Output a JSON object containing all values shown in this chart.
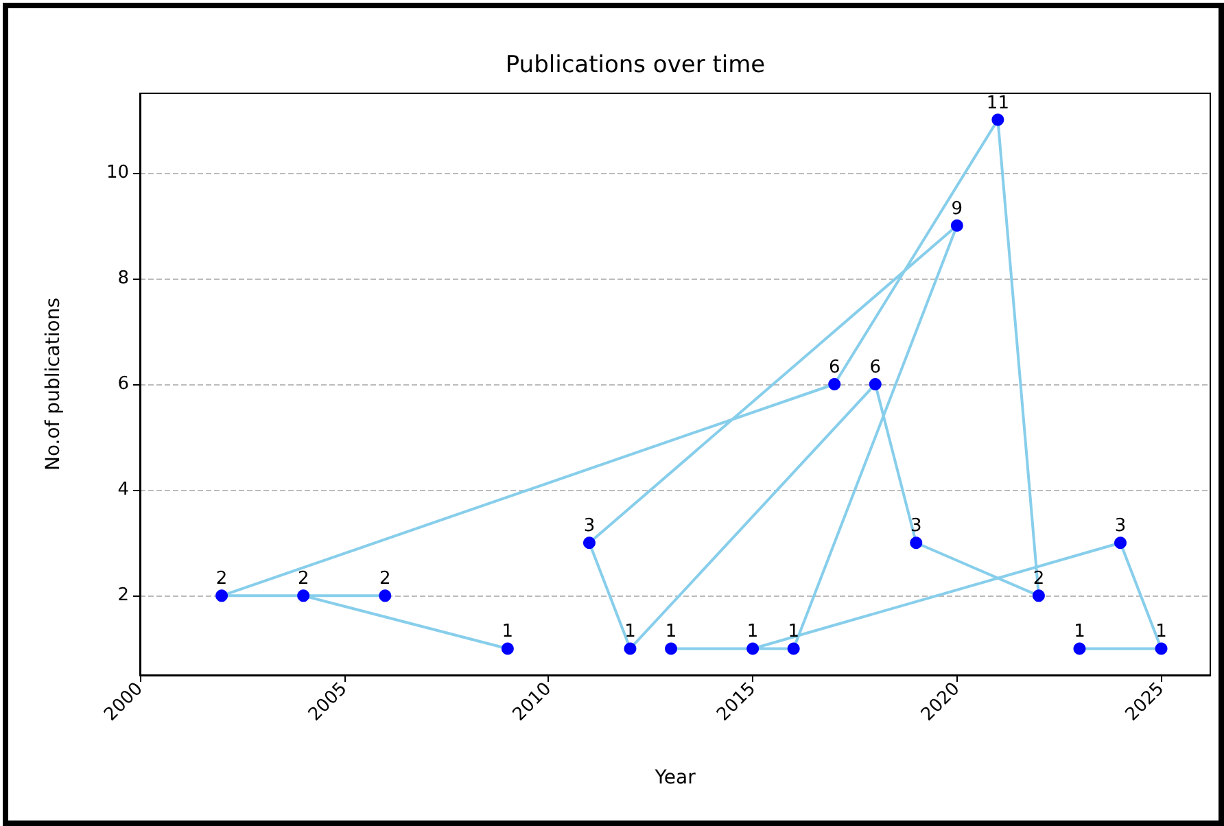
{
  "chart_data": {
    "type": "line",
    "title": "Publications over time",
    "xlabel": "Year",
    "ylabel": "No.of publications",
    "x": [
      2023,
      2025,
      2024,
      2015,
      2013,
      2016,
      2020,
      2011,
      2012,
      2018,
      2019,
      2022,
      2021,
      2017,
      2002,
      2006,
      2004,
      2009
    ],
    "series": [
      {
        "color": "#87ceeb",
        "colors": [
          "#0000ff",
          "#0000ff",
          "#0000ff",
          "#0000ff",
          "#0000ff",
          "#0000ff",
          "#0000ff",
          "#0000ff",
          "#0000ff",
          "#0000ff",
          "#0000ff",
          "#0000ff",
          "#0000ff",
          "#0000ff",
          "#0000ff",
          "#0000ff",
          "#0000ff",
          "#0000ff"
        ],
        "values": [
          1,
          1,
          3,
          1,
          1,
          1,
          9,
          3,
          1,
          6,
          3,
          2,
          11,
          6,
          2,
          2,
          2,
          1
        ]
      }
    ],
    "xlim": [
      2000,
      2026.2
    ],
    "xticks": [
      2000,
      2005,
      2010,
      2015,
      2020,
      2025
    ],
    "ylim": [
      0.5,
      11.5
    ],
    "yticks": [
      2,
      4,
      6,
      8,
      10
    ],
    "grid": "y",
    "marker": "circle",
    "line_style": "solid",
    "data_labels": true
  }
}
